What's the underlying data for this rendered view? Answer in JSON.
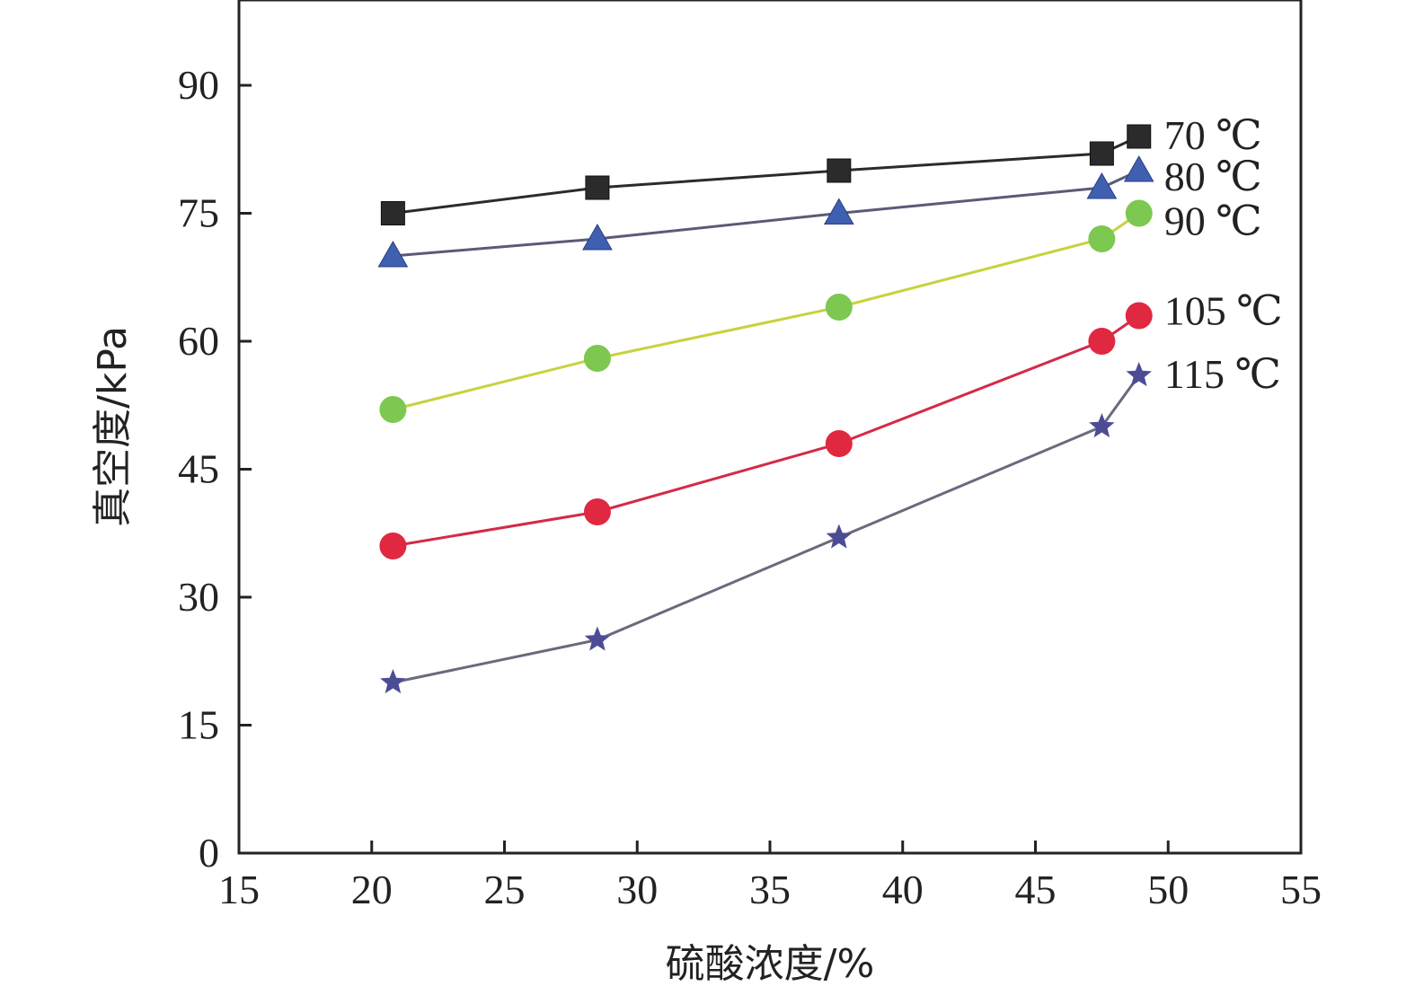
{
  "chart_data": {
    "type": "line",
    "title": "",
    "xlabel": "硫酸浓度/%",
    "ylabel": "真空度/kPa",
    "xlim": [
      15,
      55
    ],
    "ylim": [
      0,
      100
    ],
    "x_ticks": [
      "15",
      "20",
      "25",
      "30",
      "35",
      "40",
      "45",
      "50",
      "55"
    ],
    "y_ticks": [
      "0",
      "15",
      "30",
      "45",
      "60",
      "75",
      "90"
    ],
    "grid": false,
    "x": [
      20.8,
      28.5,
      37.6,
      47.5,
      48.9
    ],
    "series": [
      {
        "name": "70 ℃",
        "marker": "square",
        "color": "#2b2b2b",
        "line_color": "#2b2b2b",
        "values": [
          75,
          78,
          80,
          82,
          84
        ]
      },
      {
        "name": "80 ℃",
        "marker": "triangle",
        "color": "#3f5fb0",
        "line_color": "#5a5a78",
        "values": [
          70,
          72,
          75,
          78,
          80
        ]
      },
      {
        "name": "90 ℃",
        "marker": "circle",
        "color": "#7cc850",
        "line_color": "#c8d23c",
        "values": [
          52,
          58,
          64,
          72,
          75
        ]
      },
      {
        "name": "105 ℃",
        "marker": "circle",
        "color": "#e02840",
        "line_color": "#d42a4a",
        "values": [
          36,
          40,
          48,
          60,
          63
        ]
      },
      {
        "name": "115 ℃",
        "marker": "star",
        "color": "#4c4c96",
        "line_color": "#6a6a7e",
        "values": [
          20,
          25,
          37,
          50,
          56
        ]
      }
    ]
  }
}
